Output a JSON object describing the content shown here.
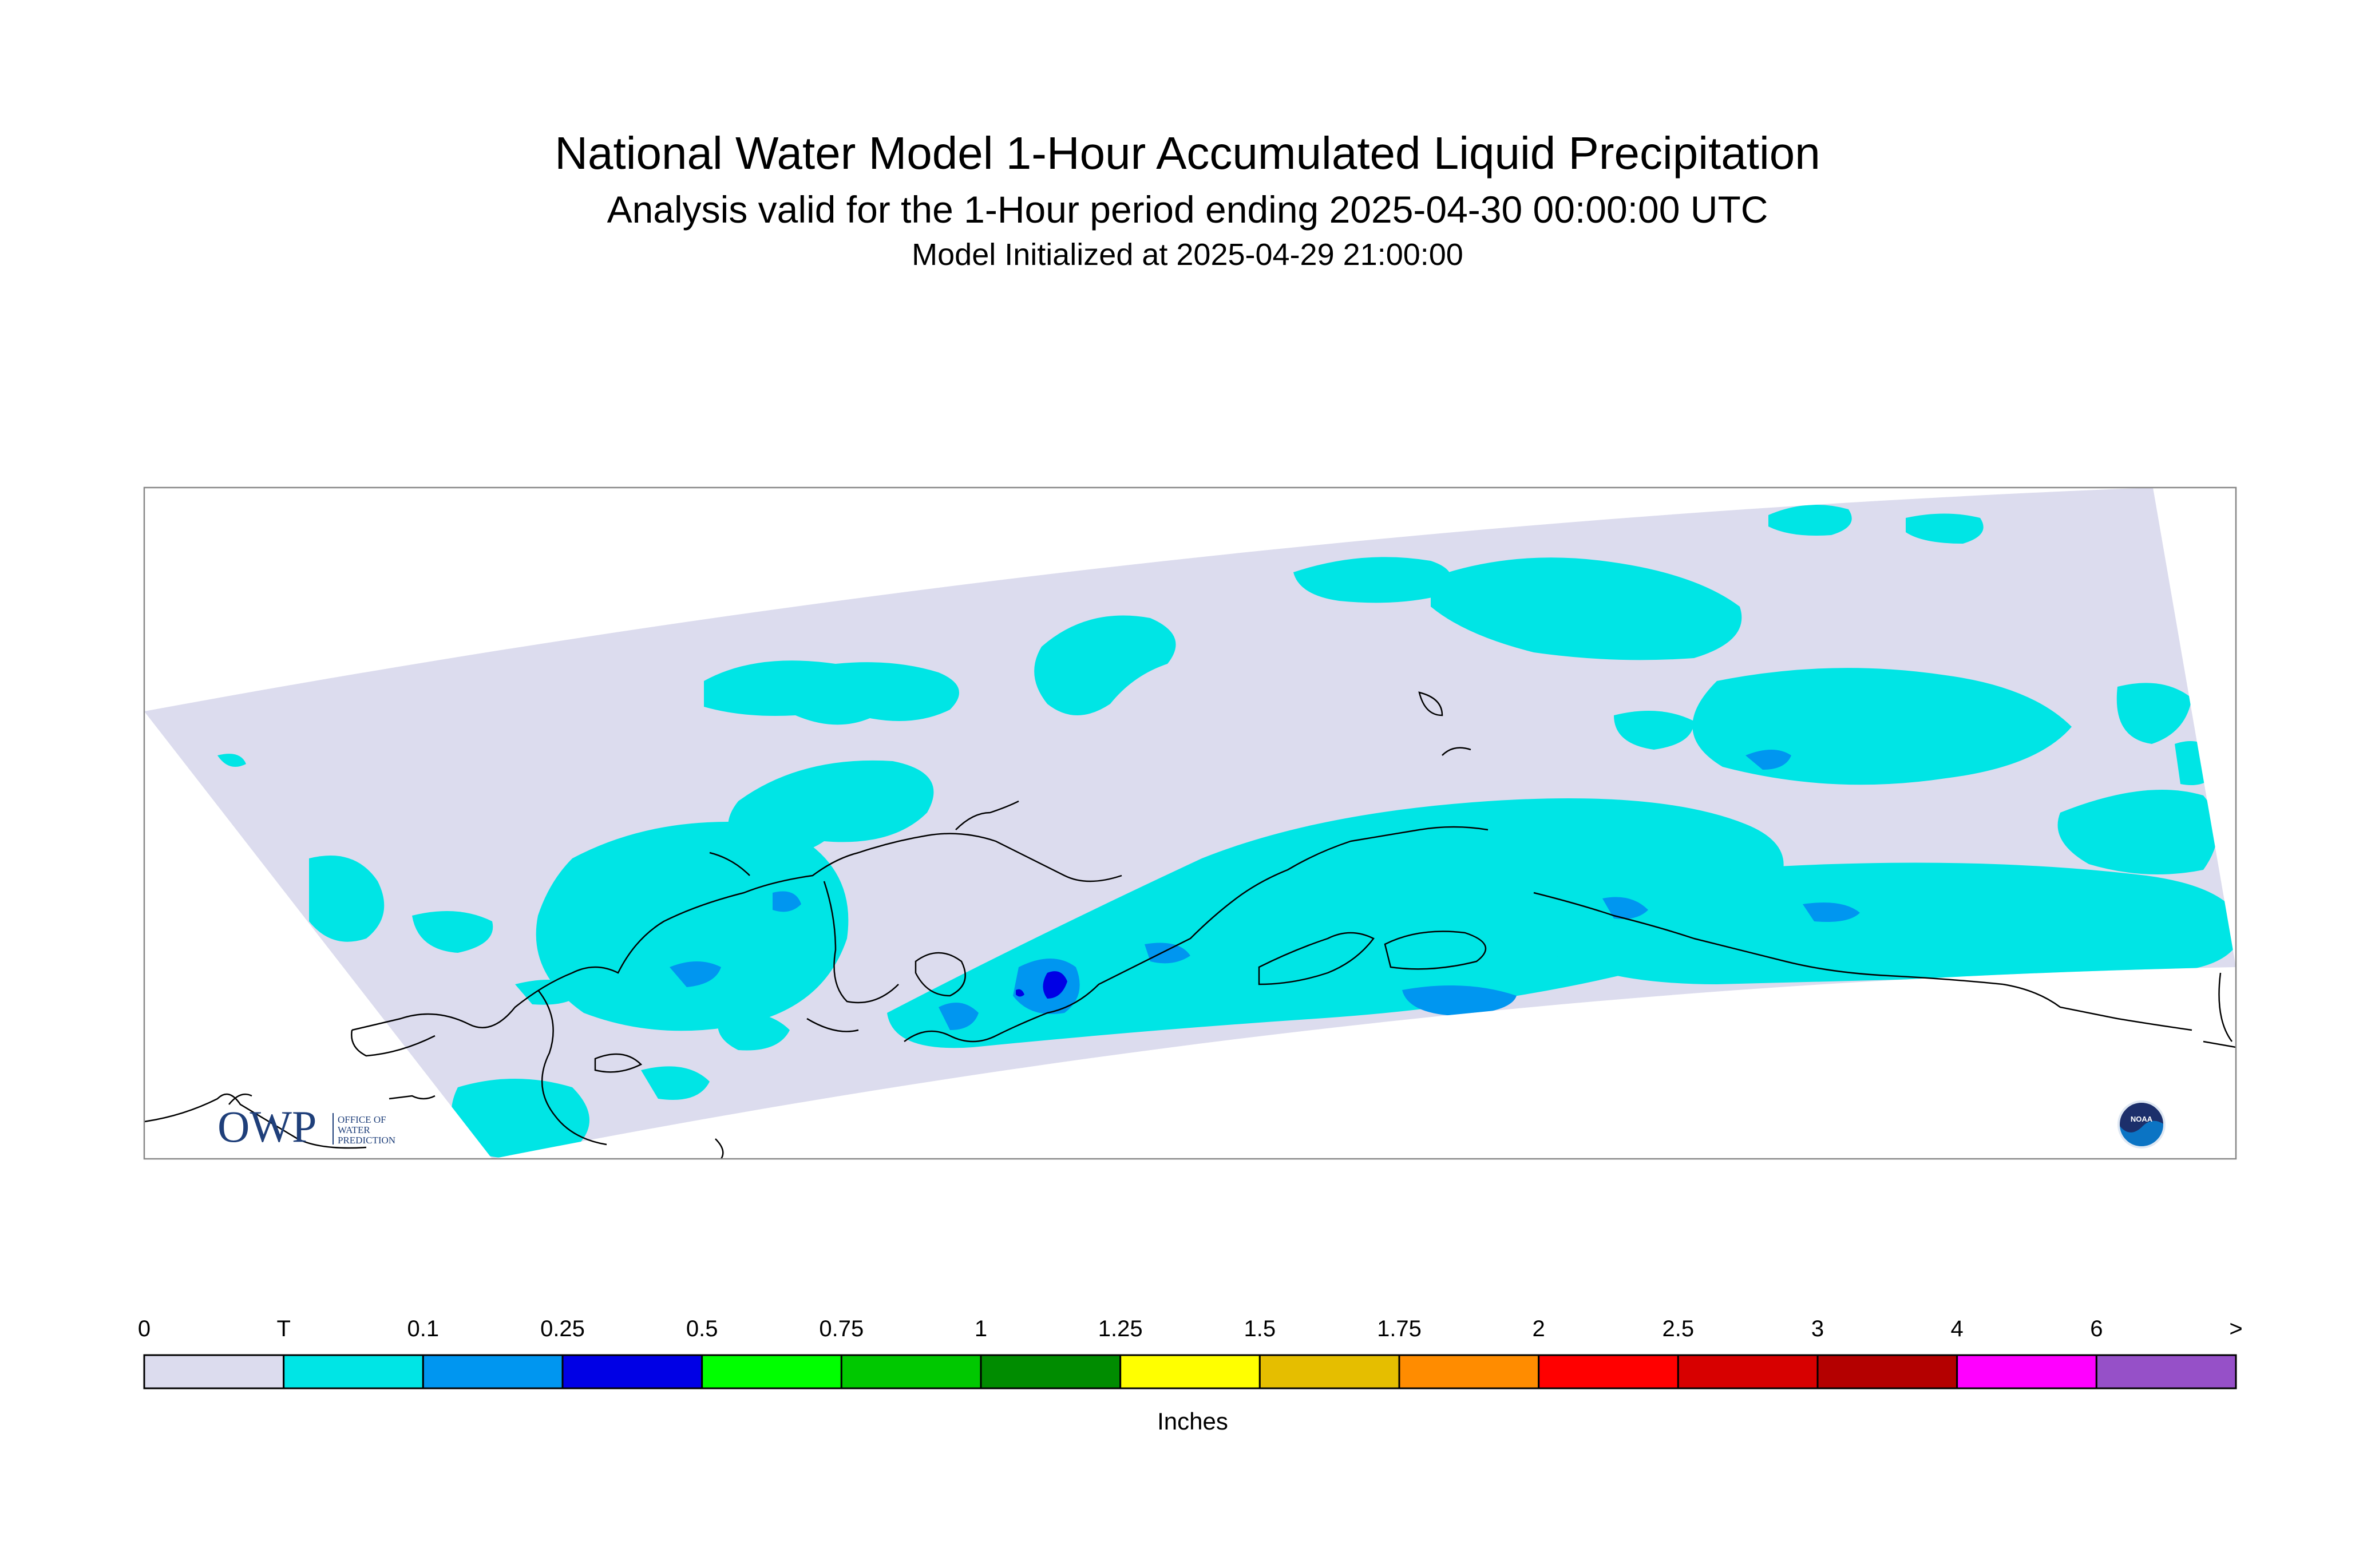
{
  "title": "National Water Model 1-Hour Accumulated Liquid Precipitation",
  "subtitle": "Analysis valid for the 1-Hour period ending 2025-04-30 00:00:00 UTC",
  "initialized": "Model Initialized at 2025-04-29 21:00:00",
  "colorbar": {
    "labels": [
      "0",
      "T",
      "0.1",
      "0.25",
      "0.5",
      "0.75",
      "1",
      "1.25",
      "1.5",
      "1.75",
      "2",
      "2.5",
      "3",
      "4",
      "6",
      ">"
    ],
    "colors": [
      "#dcdcee",
      "#00e5e5",
      "#0096f0",
      "#0000e5",
      "#00ff00",
      "#00c800",
      "#008c00",
      "#ffff00",
      "#e5be00",
      "#ff8c00",
      "#ff0000",
      "#d70000",
      "#b40000",
      "#ff00ff",
      "#9650c8"
    ],
    "units": "Inches"
  },
  "logos": {
    "owp": {
      "mark": "OWP",
      "lines": [
        "OFFICE OF",
        "WATER",
        "PREDICTION"
      ],
      "color": "#1f3f7a"
    },
    "noaa": {
      "mark": "NOAA",
      "color": "#0b74c4"
    }
  },
  "map_colors": {
    "no_rain": "#dcdcee",
    "trace": "#00e5e5",
    "light": "#0096f0",
    "moderate": "#0000e5",
    "coast": "#000000",
    "frame": "#888888"
  }
}
